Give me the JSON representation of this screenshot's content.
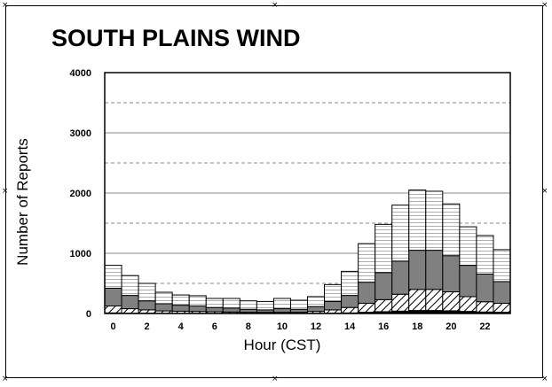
{
  "chart_data": {
    "type": "bar",
    "stacked": true,
    "title": "SOUTH PLAINS WIND",
    "xlabel": "Hour (CST)",
    "ylabel": "Number of Reports",
    "ylim": [
      0,
      4000
    ],
    "yticks": [
      "0",
      "1000",
      "2000",
      "3000",
      "4000"
    ],
    "xticks": [
      "0",
      "2",
      "4",
      "6",
      "8",
      "10",
      "12",
      "14",
      "16",
      "18",
      "20",
      "22"
    ],
    "categories": [
      "0",
      "1",
      "2",
      "3",
      "4",
      "5",
      "6",
      "7",
      "8",
      "9",
      "10",
      "11",
      "12",
      "13",
      "14",
      "15",
      "16",
      "17",
      "18",
      "19",
      "20",
      "21",
      "22",
      "23"
    ],
    "grid": "solid at 1000-unit ticks, dashed at 500-unit midpoints",
    "series": [
      {
        "fill": "solid-black",
        "values": [
          10,
          5,
          5,
          3,
          3,
          3,
          3,
          2,
          2,
          2,
          2,
          2,
          3,
          5,
          10,
          20,
          30,
          40,
          50,
          50,
          45,
          35,
          25,
          20
        ]
      },
      {
        "fill": "diagonal-hatch",
        "values": [
          115,
          75,
          55,
          40,
          35,
          32,
          27,
          23,
          18,
          18,
          18,
          18,
          32,
          55,
          90,
          150,
          200,
          280,
          350,
          350,
          315,
          245,
          170,
          150
        ]
      },
      {
        "fill": "gray",
        "values": [
          295,
          220,
          150,
          120,
          100,
          90,
          70,
          65,
          50,
          40,
          60,
          50,
          80,
          140,
          200,
          350,
          450,
          550,
          650,
          650,
          600,
          520,
          460,
          360
        ]
      },
      {
        "fill": "white-horizontal-lines",
        "values": [
          380,
          330,
          290,
          190,
          170,
          170,
          150,
          160,
          140,
          140,
          170,
          150,
          165,
          280,
          400,
          640,
          800,
          930,
          1000,
          980,
          860,
          640,
          640,
          530
        ]
      }
    ],
    "colors": {
      "frame": "#000000",
      "gray_fill": "#808080",
      "grid_solid": "#888888",
      "grid_dashed": "#888888"
    }
  }
}
